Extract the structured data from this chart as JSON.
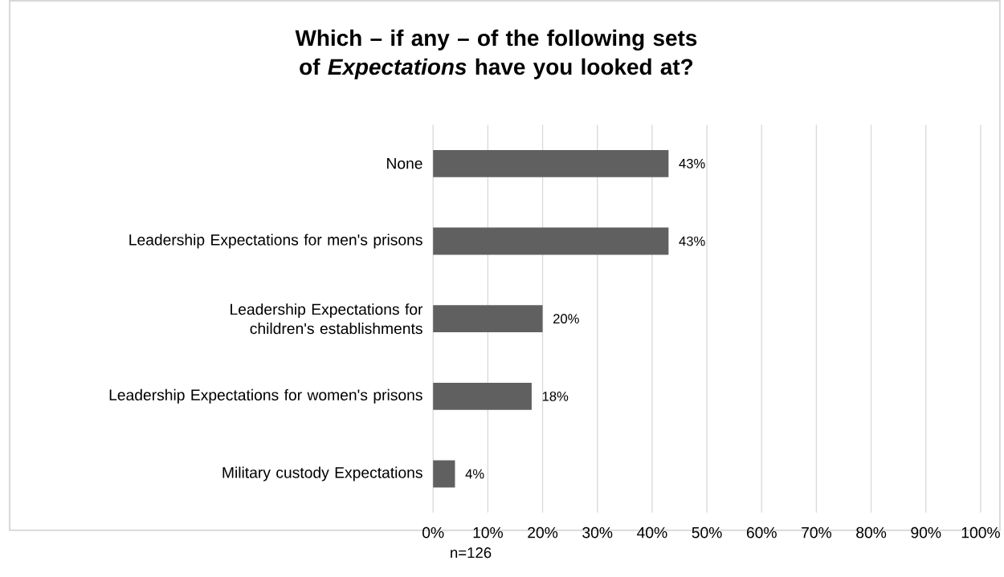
{
  "chart_data": {
    "type": "bar",
    "orientation": "horizontal",
    "title": "Which – if any – of the following sets of *Expectations* have you looked at?",
    "categories": [
      "None",
      "Leadership Expectations for men's prisons",
      "Leadership Expectations for children's establishments",
      "Leadership Expectations for women's prisons",
      "Military custody Expectations"
    ],
    "values": [
      43,
      43,
      20,
      18,
      4
    ],
    "value_labels": [
      "43%",
      "43%",
      "20%",
      "18%",
      "4%"
    ],
    "color": "#606060",
    "xlim": [
      0,
      100
    ],
    "xticks": [
      {
        "value": 0,
        "label": "0%"
      },
      {
        "value": 10,
        "label": "10%"
      },
      {
        "value": 20,
        "label": "20%"
      },
      {
        "value": 30,
        "label": "30%"
      },
      {
        "value": 40,
        "label": "40%"
      },
      {
        "value": 50,
        "label": "50%"
      },
      {
        "value": 60,
        "label": "60%"
      },
      {
        "value": 70,
        "label": "70%"
      },
      {
        "value": 80,
        "label": "80%"
      },
      {
        "value": 90,
        "label": "90%"
      },
      {
        "value": 100,
        "label": "100%"
      }
    ],
    "grid": "x",
    "annotations": [
      "n=126"
    ]
  }
}
